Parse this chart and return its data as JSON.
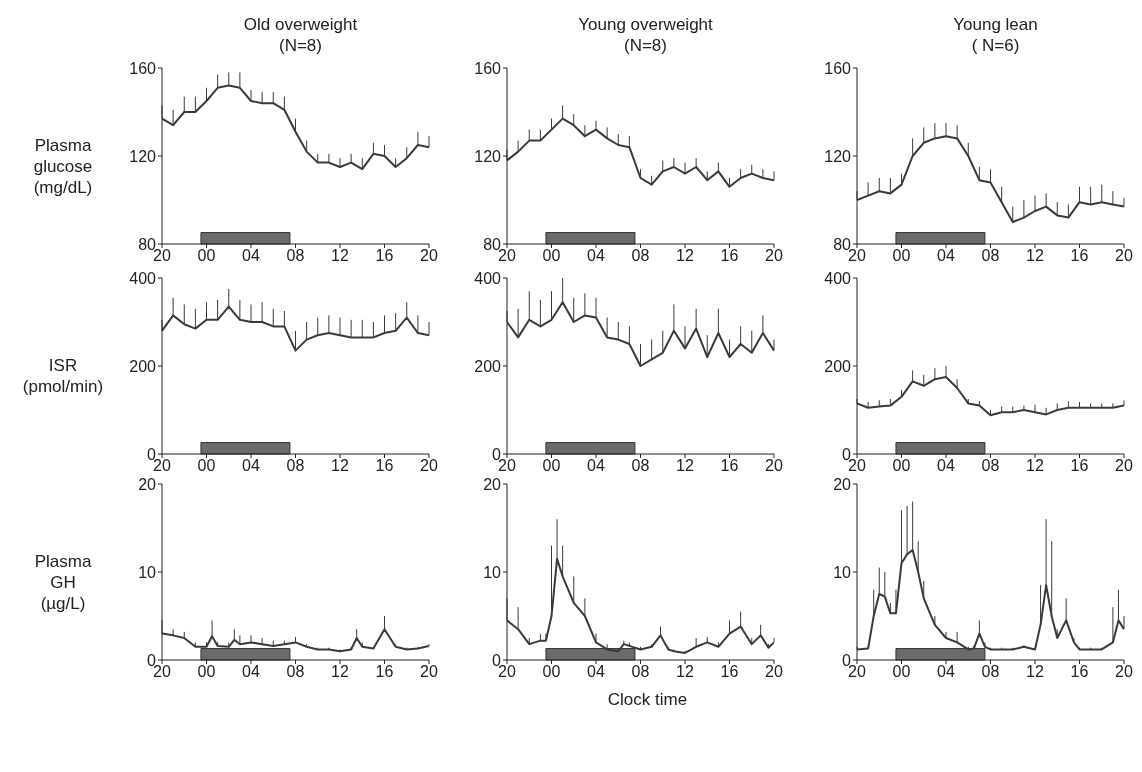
{
  "chart_data": [
    {
      "type": "line",
      "title": "Old overweight\n(N=8)",
      "ylabel": "Plasma\nglucose\n(mg/dL)",
      "x": [
        "2000-01-01T20:00",
        "2000-01-01T21:00",
        "2000-01-01T22:00",
        "2000-01-01T23:00",
        "2000-01-02T00:00",
        "2000-01-02T01:00",
        "2000-01-02T02:00",
        "2000-01-02T03:00",
        "2000-01-02T04:00",
        "2000-01-02T05:00",
        "2000-01-02T06:00",
        "2000-01-02T07:00",
        "2000-01-02T08:00",
        "2000-01-02T09:00",
        "2000-01-02T10:00",
        "2000-01-02T11:00",
        "2000-01-02T12:00",
        "2000-01-02T13:00",
        "2000-01-02T14:00",
        "2000-01-02T15:00",
        "2000-01-02T16:00",
        "2000-01-02T17:00",
        "2000-01-02T18:00",
        "2000-01-02T19:00",
        "2000-01-02T20:00"
      ],
      "series": [
        {
          "color": "#3a3a3a",
          "values": [
            137,
            134,
            140,
            140,
            145,
            151,
            152,
            151,
            145,
            144,
            144,
            141,
            131,
            122,
            117,
            117,
            115,
            117,
            114,
            121,
            120,
            115,
            119,
            125,
            124
          ],
          "errors": [
            [
              137,
              143
            ],
            [
              134,
              141
            ],
            [
              140,
              147
            ],
            [
              140,
              147
            ],
            [
              145,
              151
            ],
            [
              151,
              157
            ],
            [
              152,
              158
            ],
            [
              151,
              158
            ],
            [
              145,
              150
            ],
            [
              144,
              149
            ],
            [
              144,
              149
            ],
            [
              141,
              147
            ],
            [
              131,
              137
            ],
            [
              122,
              127
            ],
            [
              117,
              121
            ],
            [
              117,
              121
            ],
            [
              115,
              119
            ],
            [
              117,
              121
            ],
            [
              114,
              119
            ],
            [
              121,
              126
            ],
            [
              120,
              125
            ],
            [
              115,
              119
            ],
            [
              119,
              124
            ],
            [
              125,
              131
            ],
            [
              124,
              129
            ]
          ]
        }
      ],
      "xlim": [
        "2000-01-01T20:00",
        "2000-01-02T20:00"
      ],
      "xticks": [
        {
          "value": "2000-01-01T20:00",
          "label": "20"
        },
        {
          "value": "2000-01-02T00:00",
          "label": "00"
        },
        {
          "value": "2000-01-02T04:00",
          "label": "04"
        },
        {
          "value": "2000-01-02T08:00",
          "label": "08"
        },
        {
          "value": "2000-01-02T12:00",
          "label": "12"
        },
        {
          "value": "2000-01-02T16:00",
          "label": "16"
        },
        {
          "value": "2000-01-02T20:00",
          "label": "20"
        }
      ],
      "ylim": [
        80,
        160
      ],
      "yticks": [
        80,
        120,
        160
      ],
      "bands": [
        {
          "axis": "x",
          "from": "2000-01-01T23:30",
          "to": "2000-01-02T07:30",
          "color": "#6b6b6b"
        }
      ],
      "marker": "none",
      "line_style": "solid"
    },
    {
      "type": "line",
      "title": "Young overweight\n(N=8)",
      "x": [
        "2000-01-01T20:00",
        "2000-01-01T21:00",
        "2000-01-01T22:00",
        "2000-01-01T23:00",
        "2000-01-02T00:00",
        "2000-01-02T01:00",
        "2000-01-02T02:00",
        "2000-01-02T03:00",
        "2000-01-02T04:00",
        "2000-01-02T05:00",
        "2000-01-02T06:00",
        "2000-01-02T07:00",
        "2000-01-02T08:00",
        "2000-01-02T09:00",
        "2000-01-02T10:00",
        "2000-01-02T11:00",
        "2000-01-02T12:00",
        "2000-01-02T13:00",
        "2000-01-02T14:00",
        "2000-01-02T15:00",
        "2000-01-02T16:00",
        "2000-01-02T17:00",
        "2000-01-02T18:00",
        "2000-01-02T19:00",
        "2000-01-02T20:00"
      ],
      "series": [
        {
          "color": "#3a3a3a",
          "values": [
            118,
            122,
            127,
            127,
            132,
            137,
            134,
            129,
            132,
            128,
            125,
            124,
            110,
            107,
            113,
            115,
            112,
            115,
            109,
            113,
            106,
            110,
            112,
            110,
            109
          ],
          "errors": [
            [
              118,
              123
            ],
            [
              122,
              127
            ],
            [
              127,
              132
            ],
            [
              127,
              132
            ],
            [
              132,
              137
            ],
            [
              137,
              143
            ],
            [
              134,
              139
            ],
            [
              129,
              134
            ],
            [
              132,
              136
            ],
            [
              128,
              133
            ],
            [
              125,
              130
            ],
            [
              124,
              129
            ],
            [
              110,
              114
            ],
            [
              107,
              111
            ],
            [
              113,
              118
            ],
            [
              115,
              119
            ],
            [
              112,
              117
            ],
            [
              115,
              119
            ],
            [
              109,
              113
            ],
            [
              113,
              117
            ],
            [
              106,
              110
            ],
            [
              110,
              114
            ],
            [
              112,
              116
            ],
            [
              110,
              114
            ],
            [
              109,
              113
            ]
          ]
        }
      ],
      "xlim": [
        "2000-01-01T20:00",
        "2000-01-02T20:00"
      ],
      "xticks": [
        {
          "value": "2000-01-01T20:00",
          "label": "20"
        },
        {
          "value": "2000-01-02T00:00",
          "label": "00"
        },
        {
          "value": "2000-01-02T04:00",
          "label": "04"
        },
        {
          "value": "2000-01-02T08:00",
          "label": "08"
        },
        {
          "value": "2000-01-02T12:00",
          "label": "12"
        },
        {
          "value": "2000-01-02T16:00",
          "label": "16"
        },
        {
          "value": "2000-01-02T20:00",
          "label": "20"
        }
      ],
      "ylim": [
        80,
        160
      ],
      "yticks": [
        80,
        120,
        160
      ],
      "bands": [
        {
          "axis": "x",
          "from": "2000-01-01T23:30",
          "to": "2000-01-02T07:30",
          "color": "#6b6b6b"
        }
      ],
      "marker": "none",
      "line_style": "solid"
    },
    {
      "type": "line",
      "title": "Young lean\n( N=6)",
      "x": [
        "2000-01-01T20:00",
        "2000-01-01T21:00",
        "2000-01-01T22:00",
        "2000-01-01T23:00",
        "2000-01-02T00:00",
        "2000-01-02T01:00",
        "2000-01-02T02:00",
        "2000-01-02T03:00",
        "2000-01-02T04:00",
        "2000-01-02T05:00",
        "2000-01-02T06:00",
        "2000-01-02T07:00",
        "2000-01-02T08:00",
        "2000-01-02T09:00",
        "2000-01-02T10:00",
        "2000-01-02T11:00",
        "2000-01-02T12:00",
        "2000-01-02T13:00",
        "2000-01-02T14:00",
        "2000-01-02T15:00",
        "2000-01-02T16:00",
        "2000-01-02T17:00",
        "2000-01-02T18:00",
        "2000-01-02T19:00",
        "2000-01-02T20:00"
      ],
      "series": [
        {
          "color": "#3a3a3a",
          "values": [
            100,
            102,
            104,
            103,
            107,
            120,
            126,
            128,
            129,
            128,
            120,
            109,
            108,
            99,
            90,
            92,
            95,
            97,
            93,
            92,
            99,
            98,
            99,
            98,
            97
          ],
          "errors": [
            [
              100,
              104
            ],
            [
              102,
              108
            ],
            [
              104,
              110
            ],
            [
              103,
              110
            ],
            [
              107,
              112
            ],
            [
              120,
              128
            ],
            [
              126,
              133
            ],
            [
              128,
              135
            ],
            [
              129,
              135
            ],
            [
              128,
              134
            ],
            [
              120,
              126
            ],
            [
              109,
              115
            ],
            [
              108,
              114
            ],
            [
              99,
              106
            ],
            [
              90,
              97
            ],
            [
              92,
              100
            ],
            [
              95,
              102
            ],
            [
              97,
              103
            ],
            [
              93,
              99
            ],
            [
              92,
              98
            ],
            [
              99,
              106
            ],
            [
              98,
              106
            ],
            [
              99,
              107
            ],
            [
              98,
              104
            ],
            [
              97,
              101
            ]
          ]
        }
      ],
      "xlim": [
        "2000-01-01T20:00",
        "2000-01-02T20:00"
      ],
      "xticks": [
        {
          "value": "2000-01-01T20:00",
          "label": "20"
        },
        {
          "value": "2000-01-02T00:00",
          "label": "00"
        },
        {
          "value": "2000-01-02T04:00",
          "label": "04"
        },
        {
          "value": "2000-01-02T08:00",
          "label": "08"
        },
        {
          "value": "2000-01-02T12:00",
          "label": "12"
        },
        {
          "value": "2000-01-02T16:00",
          "label": "16"
        },
        {
          "value": "2000-01-02T20:00",
          "label": "20"
        }
      ],
      "ylim": [
        80,
        160
      ],
      "yticks": [
        80,
        120,
        160
      ],
      "bands": [
        {
          "axis": "x",
          "from": "2000-01-01T23:30",
          "to": "2000-01-02T07:30",
          "color": "#6b6b6b"
        }
      ],
      "marker": "none",
      "line_style": "solid"
    },
    {
      "type": "line",
      "ylabel": "ISR\n(pmol/min)",
      "x": [
        "2000-01-01T20:00",
        "2000-01-01T21:00",
        "2000-01-01T22:00",
        "2000-01-01T23:00",
        "2000-01-02T00:00",
        "2000-01-02T01:00",
        "2000-01-02T02:00",
        "2000-01-02T03:00",
        "2000-01-02T04:00",
        "2000-01-02T05:00",
        "2000-01-02T06:00",
        "2000-01-02T07:00",
        "2000-01-02T08:00",
        "2000-01-02T09:00",
        "2000-01-02T10:00",
        "2000-01-02T11:00",
        "2000-01-02T12:00",
        "2000-01-02T13:00",
        "2000-01-02T14:00",
        "2000-01-02T15:00",
        "2000-01-02T16:00",
        "2000-01-02T17:00",
        "2000-01-02T18:00",
        "2000-01-02T19:00",
        "2000-01-02T20:00"
      ],
      "series": [
        {
          "color": "#3a3a3a",
          "values": [
            280,
            315,
            295,
            285,
            305,
            305,
            335,
            305,
            300,
            300,
            290,
            290,
            235,
            260,
            270,
            275,
            270,
            265,
            265,
            265,
            275,
            280,
            310,
            275,
            270
          ],
          "errors": [
            [
              280,
              305
            ],
            [
              315,
              355
            ],
            [
              295,
              340
            ],
            [
              285,
              330
            ],
            [
              305,
              345
            ],
            [
              305,
              350
            ],
            [
              335,
              375
            ],
            [
              305,
              350
            ],
            [
              300,
              340
            ],
            [
              300,
              345
            ],
            [
              290,
              330
            ],
            [
              290,
              325
            ],
            [
              235,
              280
            ],
            [
              260,
              300
            ],
            [
              270,
              310
            ],
            [
              275,
              315
            ],
            [
              270,
              310
            ],
            [
              265,
              305
            ],
            [
              265,
              305
            ],
            [
              265,
              300
            ],
            [
              275,
              315
            ],
            [
              280,
              320
            ],
            [
              310,
              345
            ],
            [
              275,
              315
            ],
            [
              270,
              300
            ]
          ]
        }
      ],
      "xlim": [
        "2000-01-01T20:00",
        "2000-01-02T20:00"
      ],
      "xticks": [
        {
          "value": "2000-01-01T20:00",
          "label": "20"
        },
        {
          "value": "2000-01-02T00:00",
          "label": "00"
        },
        {
          "value": "2000-01-02T04:00",
          "label": "04"
        },
        {
          "value": "2000-01-02T08:00",
          "label": "08"
        },
        {
          "value": "2000-01-02T12:00",
          "label": "12"
        },
        {
          "value": "2000-01-02T16:00",
          "label": "16"
        },
        {
          "value": "2000-01-02T20:00",
          "label": "20"
        }
      ],
      "ylim": [
        0,
        400
      ],
      "yticks": [
        0,
        200,
        400
      ],
      "bands": [
        {
          "axis": "x",
          "from": "2000-01-01T23:30",
          "to": "2000-01-02T07:30",
          "color": "#6b6b6b"
        }
      ],
      "marker": "none",
      "line_style": "solid"
    },
    {
      "type": "line",
      "x": [
        "2000-01-01T20:00",
        "2000-01-01T21:00",
        "2000-01-01T22:00",
        "2000-01-01T23:00",
        "2000-01-02T00:00",
        "2000-01-02T01:00",
        "2000-01-02T02:00",
        "2000-01-02T03:00",
        "2000-01-02T04:00",
        "2000-01-02T05:00",
        "2000-01-02T06:00",
        "2000-01-02T07:00",
        "2000-01-02T08:00",
        "2000-01-02T09:00",
        "2000-01-02T10:00",
        "2000-01-02T11:00",
        "2000-01-02T12:00",
        "2000-01-02T13:00",
        "2000-01-02T14:00",
        "2000-01-02T15:00",
        "2000-01-02T16:00",
        "2000-01-02T17:00",
        "2000-01-02T18:00",
        "2000-01-02T19:00",
        "2000-01-02T20:00"
      ],
      "series": [
        {
          "color": "#3a3a3a",
          "values": [
            300,
            265,
            305,
            290,
            305,
            345,
            300,
            315,
            310,
            265,
            260,
            250,
            200,
            215,
            230,
            280,
            240,
            285,
            220,
            275,
            220,
            250,
            230,
            275,
            235
          ],
          "errors": [
            [
              300,
              325
            ],
            [
              265,
              330
            ],
            [
              305,
              370
            ],
            [
              290,
              350
            ],
            [
              305,
              370
            ],
            [
              345,
              400
            ],
            [
              300,
              355
            ],
            [
              315,
              365
            ],
            [
              310,
              355
            ],
            [
              265,
              310
            ],
            [
              260,
              300
            ],
            [
              250,
              290
            ],
            [
              200,
              250
            ],
            [
              215,
              260
            ],
            [
              230,
              280
            ],
            [
              280,
              340
            ],
            [
              240,
              290
            ],
            [
              285,
              330
            ],
            [
              220,
              270
            ],
            [
              275,
              330
            ],
            [
              220,
              260
            ],
            [
              250,
              290
            ],
            [
              230,
              280
            ],
            [
              275,
              315
            ],
            [
              235,
              260
            ]
          ]
        }
      ],
      "xlim": [
        "2000-01-01T20:00",
        "2000-01-02T20:00"
      ],
      "xticks": [
        {
          "value": "2000-01-01T20:00",
          "label": "20"
        },
        {
          "value": "2000-01-02T00:00",
          "label": "00"
        },
        {
          "value": "2000-01-02T04:00",
          "label": "04"
        },
        {
          "value": "2000-01-02T08:00",
          "label": "08"
        },
        {
          "value": "2000-01-02T12:00",
          "label": "12"
        },
        {
          "value": "2000-01-02T16:00",
          "label": "16"
        },
        {
          "value": "2000-01-02T20:00",
          "label": "20"
        }
      ],
      "ylim": [
        0,
        400
      ],
      "yticks": [
        0,
        200,
        400
      ],
      "bands": [
        {
          "axis": "x",
          "from": "2000-01-01T23:30",
          "to": "2000-01-02T07:30",
          "color": "#6b6b6b"
        }
      ],
      "marker": "none",
      "line_style": "solid"
    },
    {
      "type": "line",
      "x": [
        "2000-01-01T20:00",
        "2000-01-01T21:00",
        "2000-01-01T22:00",
        "2000-01-01T23:00",
        "2000-01-02T00:00",
        "2000-01-02T01:00",
        "2000-01-02T02:00",
        "2000-01-02T03:00",
        "2000-01-02T04:00",
        "2000-01-02T05:00",
        "2000-01-02T06:00",
        "2000-01-02T07:00",
        "2000-01-02T08:00",
        "2000-01-02T09:00",
        "2000-01-02T10:00",
        "2000-01-02T11:00",
        "2000-01-02T12:00",
        "2000-01-02T13:00",
        "2000-01-02T14:00",
        "2000-01-02T15:00",
        "2000-01-02T16:00",
        "2000-01-02T17:00",
        "2000-01-02T18:00",
        "2000-01-02T19:00",
        "2000-01-02T20:00"
      ],
      "series": [
        {
          "color": "#3a3a3a",
          "values": [
            115,
            105,
            108,
            110,
            130,
            165,
            155,
            170,
            175,
            150,
            115,
            110,
            88,
            95,
            95,
            100,
            95,
            90,
            100,
            105,
            105,
            105,
            105,
            105,
            110
          ],
          "errors": [
            [
              115,
              125
            ],
            [
              105,
              118
            ],
            [
              108,
              122
            ],
            [
              110,
              125
            ],
            [
              130,
              145
            ],
            [
              165,
              190
            ],
            [
              155,
              180
            ],
            [
              170,
              195
            ],
            [
              175,
              200
            ],
            [
              150,
              170
            ],
            [
              115,
              125
            ],
            [
              110,
              120
            ],
            [
              88,
              100
            ],
            [
              95,
              108
            ],
            [
              95,
              108
            ],
            [
              100,
              110
            ],
            [
              95,
              112
            ],
            [
              90,
              105
            ],
            [
              100,
              115
            ],
            [
              105,
              120
            ],
            [
              105,
              118
            ],
            [
              105,
              115
            ],
            [
              105,
              115
            ],
            [
              105,
              115
            ],
            [
              110,
              122
            ]
          ]
        }
      ],
      "xlim": [
        "2000-01-01T20:00",
        "2000-01-02T20:00"
      ],
      "xticks": [
        {
          "value": "2000-01-01T20:00",
          "label": "20"
        },
        {
          "value": "2000-01-02T00:00",
          "label": "00"
        },
        {
          "value": "2000-01-02T04:00",
          "label": "04"
        },
        {
          "value": "2000-01-02T08:00",
          "label": "08"
        },
        {
          "value": "2000-01-02T12:00",
          "label": "12"
        },
        {
          "value": "2000-01-02T16:00",
          "label": "16"
        },
        {
          "value": "2000-01-02T20:00",
          "label": "20"
        }
      ],
      "ylim": [
        0,
        400
      ],
      "yticks": [
        0,
        200,
        400
      ],
      "bands": [
        {
          "axis": "x",
          "from": "2000-01-01T23:30",
          "to": "2000-01-02T07:30",
          "color": "#6b6b6b"
        }
      ],
      "marker": "none",
      "line_style": "solid"
    },
    {
      "type": "line",
      "ylabel": "Plasma\nGH\n(µg/L)",
      "x": [
        "2000-01-01T20:00",
        "2000-01-01T21:00",
        "2000-01-01T22:00",
        "2000-01-01T23:00",
        "2000-01-02T00:00",
        "2000-01-02T00:30",
        "2000-01-02T01:00",
        "2000-01-02T02:00",
        "2000-01-02T02:30",
        "2000-01-02T03:00",
        "2000-01-02T04:00",
        "2000-01-02T05:00",
        "2000-01-02T06:00",
        "2000-01-02T07:00",
        "2000-01-02T08:00",
        "2000-01-02T09:00",
        "2000-01-02T10:00",
        "2000-01-02T11:00",
        "2000-01-02T12:00",
        "2000-01-02T13:00",
        "2000-01-02T13:30",
        "2000-01-02T14:00",
        "2000-01-02T15:00",
        "2000-01-02T16:00",
        "2000-01-02T17:00",
        "2000-01-02T18:00",
        "2000-01-02T19:00",
        "2000-01-02T20:00"
      ],
      "series": [
        {
          "color": "#3a3a3a",
          "values": [
            3.0,
            2.8,
            2.5,
            1.5,
            1.5,
            2.7,
            1.6,
            1.5,
            2.3,
            1.8,
            2.0,
            1.8,
            1.6,
            1.8,
            2.0,
            1.5,
            1.2,
            1.2,
            1.0,
            1.2,
            2.5,
            1.5,
            1.3,
            3.5,
            1.5,
            1.2,
            1.3,
            1.6
          ],
          "errors": [
            [
              3.0,
              4.5
            ],
            [
              2.8,
              3.5
            ],
            [
              2.5,
              3.2
            ],
            [
              1.5,
              2.0
            ],
            [
              1.5,
              2.0
            ],
            [
              2.7,
              4.5
            ],
            [
              1.6,
              2.0
            ],
            [
              1.5,
              2.0
            ],
            [
              2.3,
              3.5
            ],
            [
              1.8,
              2.8
            ],
            [
              2.0,
              2.8
            ],
            [
              1.8,
              2.5
            ],
            [
              1.6,
              2.2
            ],
            [
              1.8,
              2.2
            ],
            [
              2.0,
              2.6
            ],
            [
              1.5,
              1.8
            ],
            [
              1.2,
              1.4
            ],
            [
              1.2,
              1.4
            ],
            [
              1.0,
              1.2
            ],
            [
              1.2,
              1.5
            ],
            [
              2.5,
              3.5
            ],
            [
              1.5,
              2.0
            ],
            [
              1.3,
              1.5
            ],
            [
              3.5,
              5.0
            ],
            [
              1.5,
              1.8
            ],
            [
              1.2,
              1.4
            ],
            [
              1.3,
              1.5
            ],
            [
              1.6,
              1.8
            ]
          ]
        }
      ],
      "xlim": [
        "2000-01-01T20:00",
        "2000-01-02T20:00"
      ],
      "xticks": [
        {
          "value": "2000-01-01T20:00",
          "label": "20"
        },
        {
          "value": "2000-01-02T00:00",
          "label": "00"
        },
        {
          "value": "2000-01-02T04:00",
          "label": "04"
        },
        {
          "value": "2000-01-02T08:00",
          "label": "08"
        },
        {
          "value": "2000-01-02T12:00",
          "label": "12"
        },
        {
          "value": "2000-01-02T16:00",
          "label": "16"
        },
        {
          "value": "2000-01-02T20:00",
          "label": "20"
        }
      ],
      "ylim": [
        0,
        20
      ],
      "yticks": [
        0,
        10,
        20
      ],
      "bands": [
        {
          "axis": "x",
          "from": "2000-01-01T23:30",
          "to": "2000-01-02T07:30",
          "color": "#6b6b6b"
        }
      ],
      "marker": "none",
      "line_style": "solid"
    },
    {
      "type": "line",
      "xlabel": "Clock time",
      "x": [
        "2000-01-01T20:00",
        "2000-01-01T21:00",
        "2000-01-01T22:00",
        "2000-01-01T23:00",
        "2000-01-01T23:30",
        "2000-01-02T00:00",
        "2000-01-02T00:30",
        "2000-01-02T01:00",
        "2000-01-02T02:00",
        "2000-01-02T03:00",
        "2000-01-02T04:00",
        "2000-01-02T05:00",
        "2000-01-02T06:00",
        "2000-01-02T06:30",
        "2000-01-02T07:00",
        "2000-01-02T08:00",
        "2000-01-02T09:00",
        "2000-01-02T09:48",
        "2000-01-02T10:30",
        "2000-01-02T11:00",
        "2000-01-02T12:00",
        "2000-01-02T13:00",
        "2000-01-02T14:00",
        "2000-01-02T15:00",
        "2000-01-02T16:00",
        "2000-01-02T17:00",
        "2000-01-02T18:00",
        "2000-01-02T18:48",
        "2000-01-02T19:30",
        "2000-01-02T20:00"
      ],
      "series": [
        {
          "color": "#3a3a3a",
          "values": [
            4.5,
            3.5,
            1.8,
            2.2,
            2.2,
            5.0,
            11.5,
            9.5,
            6.5,
            5.0,
            2.0,
            1.2,
            1.0,
            1.8,
            1.6,
            1.2,
            1.5,
            2.8,
            1.2,
            1.0,
            0.8,
            1.5,
            2.0,
            1.5,
            3.0,
            3.8,
            1.8,
            2.8,
            1.4,
            2.0
          ],
          "errors": [
            [
              4.5,
              7.0
            ],
            [
              3.5,
              6.0
            ],
            [
              1.8,
              2.5
            ],
            [
              2.2,
              3.0
            ],
            [
              2.2,
              3.0
            ],
            [
              5.0,
              13.0
            ],
            [
              11.5,
              16.0
            ],
            [
              9.5,
              13.0
            ],
            [
              6.5,
              9.5
            ],
            [
              5.0,
              7.0
            ],
            [
              2.0,
              3.0
            ],
            [
              1.2,
              1.8
            ],
            [
              1.0,
              1.2
            ],
            [
              1.8,
              2.2
            ],
            [
              1.6,
              2.0
            ],
            [
              1.2,
              1.5
            ],
            [
              1.5,
              1.8
            ],
            [
              2.8,
              3.8
            ],
            [
              1.2,
              1.5
            ],
            [
              1.0,
              1.2
            ],
            [
              0.8,
              1.0
            ],
            [
              1.5,
              2.5
            ],
            [
              2.0,
              2.6
            ],
            [
              1.5,
              2.0
            ],
            [
              3.0,
              4.5
            ],
            [
              3.8,
              5.5
            ],
            [
              1.8,
              2.5
            ],
            [
              2.8,
              4.0
            ],
            [
              1.4,
              1.8
            ],
            [
              2.0,
              2.5
            ]
          ]
        }
      ],
      "xlim": [
        "2000-01-01T20:00",
        "2000-01-02T20:00"
      ],
      "xticks": [
        {
          "value": "2000-01-01T20:00",
          "label": "20"
        },
        {
          "value": "2000-01-02T00:00",
          "label": "00"
        },
        {
          "value": "2000-01-02T04:00",
          "label": "04"
        },
        {
          "value": "2000-01-02T08:00",
          "label": "08"
        },
        {
          "value": "2000-01-02T12:00",
          "label": "12"
        },
        {
          "value": "2000-01-02T16:00",
          "label": "16"
        },
        {
          "value": "2000-01-02T20:00",
          "label": "20"
        }
      ],
      "ylim": [
        0,
        20
      ],
      "yticks": [
        0,
        10,
        20
      ],
      "bands": [
        {
          "axis": "x",
          "from": "2000-01-01T23:30",
          "to": "2000-01-02T07:30",
          "color": "#6b6b6b"
        }
      ],
      "marker": "none",
      "line_style": "solid"
    },
    {
      "type": "line",
      "x": [
        "2000-01-01T20:00",
        "2000-01-01T21:00",
        "2000-01-01T21:30",
        "2000-01-01T22:00",
        "2000-01-01T22:30",
        "2000-01-01T23:00",
        "2000-01-01T23:30",
        "2000-01-02T00:00",
        "2000-01-02T00:30",
        "2000-01-02T01:00",
        "2000-01-02T01:30",
        "2000-01-02T02:00",
        "2000-01-02T03:00",
        "2000-01-02T04:00",
        "2000-01-02T05:00",
        "2000-01-02T06:00",
        "2000-01-02T06:30",
        "2000-01-02T07:00",
        "2000-01-02T07:30",
        "2000-01-02T08:00",
        "2000-01-02T09:00",
        "2000-01-02T10:00",
        "2000-01-02T11:00",
        "2000-01-02T12:00",
        "2000-01-02T12:30",
        "2000-01-02T13:00",
        "2000-01-02T13:30",
        "2000-01-02T14:00",
        "2000-01-02T14:48",
        "2000-01-02T15:30",
        "2000-01-02T16:00",
        "2000-01-02T17:00",
        "2000-01-02T18:00",
        "2000-01-02T19:00",
        "2000-01-02T19:30",
        "2000-01-02T20:00"
      ],
      "series": [
        {
          "color": "#3a3a3a",
          "values": [
            1.2,
            1.3,
            5.0,
            7.5,
            7.2,
            5.3,
            5.3,
            11.0,
            12.0,
            12.5,
            10.0,
            7.0,
            4.0,
            2.5,
            2.0,
            1.2,
            1.3,
            3.0,
            1.5,
            1.2,
            1.2,
            1.2,
            1.5,
            1.2,
            4.0,
            8.5,
            5.0,
            2.5,
            4.5,
            2.0,
            1.2,
            1.2,
            1.2,
            2.0,
            4.5,
            3.5
          ],
          "errors": [
            [
              1.2,
              1.5
            ],
            [
              1.3,
              1.6
            ],
            [
              5.0,
              8.0
            ],
            [
              7.5,
              10.5
            ],
            [
              7.2,
              10.0
            ],
            [
              5.3,
              6.5
            ],
            [
              5.3,
              8.0
            ],
            [
              11.0,
              17.0
            ],
            [
              12.0,
              17.5
            ],
            [
              12.5,
              18.0
            ],
            [
              10.0,
              13.5
            ],
            [
              7.0,
              9.0
            ],
            [
              4.0,
              5.0
            ],
            [
              2.5,
              3.2
            ],
            [
              2.0,
              3.2
            ],
            [
              1.2,
              1.5
            ],
            [
              1.3,
              1.6
            ],
            [
              3.0,
              4.5
            ],
            [
              1.5,
              2.0
            ],
            [
              1.2,
              1.4
            ],
            [
              1.2,
              1.4
            ],
            [
              1.2,
              1.4
            ],
            [
              1.5,
              1.7
            ],
            [
              1.2,
              1.4
            ],
            [
              4.0,
              8.5
            ],
            [
              8.5,
              16.0
            ],
            [
              5.0,
              13.5
            ],
            [
              2.5,
              3.5
            ],
            [
              4.5,
              7.0
            ],
            [
              2.0,
              2.5
            ],
            [
              1.2,
              1.4
            ],
            [
              1.2,
              1.4
            ],
            [
              1.2,
              1.4
            ],
            [
              2.0,
              6.0
            ],
            [
              4.5,
              8.0
            ],
            [
              3.5,
              5.0
            ]
          ]
        }
      ],
      "xlim": [
        "2000-01-01T20:00",
        "2000-01-02T20:00"
      ],
      "xticks": [
        {
          "value": "2000-01-01T20:00",
          "label": "20"
        },
        {
          "value": "2000-01-02T00:00",
          "label": "00"
        },
        {
          "value": "2000-01-02T04:00",
          "label": "04"
        },
        {
          "value": "2000-01-02T08:00",
          "label": "08"
        },
        {
          "value": "2000-01-02T12:00",
          "label": "12"
        },
        {
          "value": "2000-01-02T16:00",
          "label": "16"
        },
        {
          "value": "2000-01-02T20:00",
          "label": "20"
        }
      ],
      "ylim": [
        0,
        20
      ],
      "yticks": [
        0,
        10,
        20
      ],
      "bands": [
        {
          "axis": "x",
          "from": "2000-01-01T23:30",
          "to": "2000-01-02T07:30",
          "color": "#6b6b6b"
        }
      ],
      "marker": "none",
      "line_style": "solid"
    }
  ]
}
